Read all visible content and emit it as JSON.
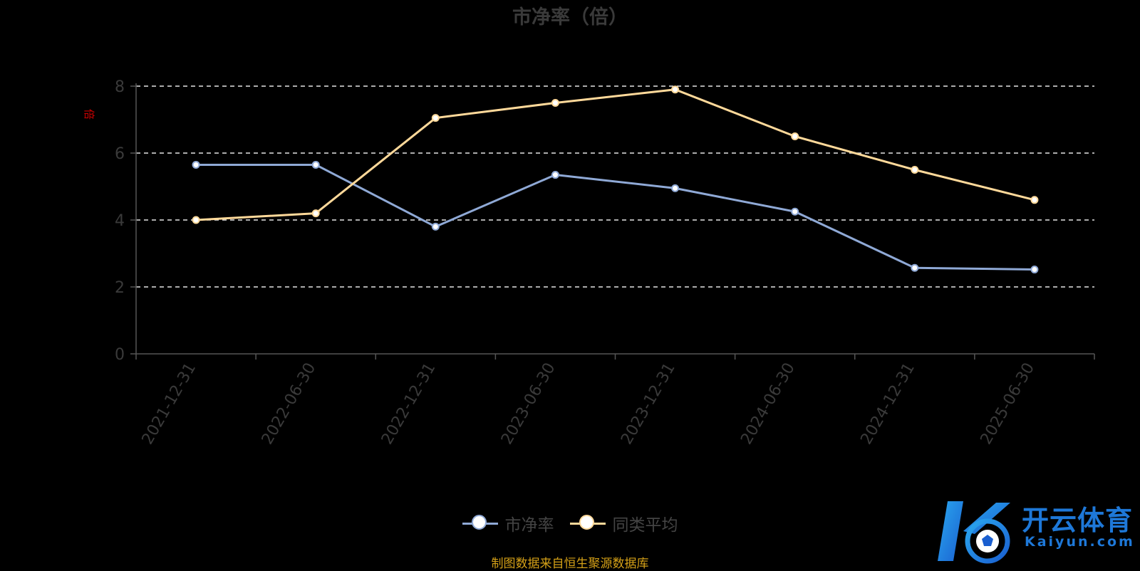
{
  "colors": {
    "background": "#000000",
    "series_pb": "#8fa9d6",
    "series_avg": "#ffd99a",
    "grid": "#e6e6e6",
    "axis": "#555555",
    "tick_text": "#3a3a3a",
    "y_unit": "#cc0000",
    "source_note": "#d4a017",
    "watermark": "#1e78d8"
  },
  "watermark": {
    "cn": "开云体育",
    "en": "Kaiyun.com"
  },
  "source_note": "制图数据来自恒生聚源数据库",
  "chart_data": {
    "type": "line",
    "title": "市净率（倍）",
    "ylabel": "倍",
    "xlabel": "",
    "categories": [
      "2021-12-31",
      "2022-06-30",
      "2022-12-31",
      "2023-06-30",
      "2023-12-31",
      "2024-06-30",
      "2024-12-31",
      "2025-06-30"
    ],
    "ylim": [
      0,
      8
    ],
    "yticks": [
      0,
      2,
      4,
      6,
      8
    ],
    "grid": true,
    "legend_position": "bottom",
    "series": [
      {
        "name": "市净率",
        "color": "#8fa9d6",
        "values": [
          5.65,
          5.65,
          3.8,
          5.35,
          4.95,
          4.25,
          2.57,
          2.52
        ]
      },
      {
        "name": "同类平均",
        "color": "#ffd99a",
        "values": [
          4.0,
          4.2,
          7.05,
          7.5,
          7.9,
          6.5,
          5.5,
          4.6
        ]
      }
    ]
  }
}
